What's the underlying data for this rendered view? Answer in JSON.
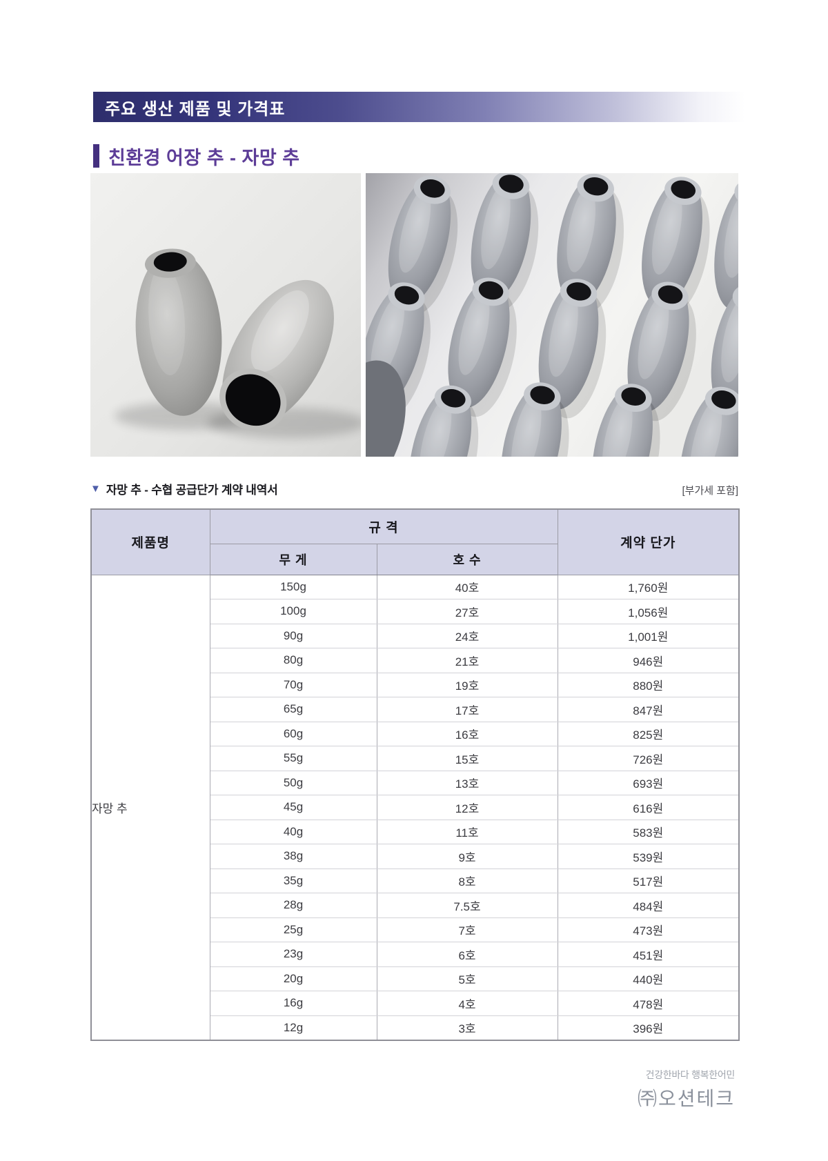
{
  "banner": {
    "title": "주요 생산 제품 및 가격표"
  },
  "section": {
    "title": "친환경 어장 추 - 자망 추"
  },
  "caption": {
    "marker": "▼",
    "title": "자망 추 - 수협 공급단가 계약 내역서",
    "note": "[부가세 포함]"
  },
  "table": {
    "headers": {
      "product": "제품명",
      "spec_group": "규 격",
      "weight": "무 게",
      "size": "호 수",
      "price": "계약 단가"
    },
    "product_name": "자망 추",
    "rows": [
      {
        "weight": "150g",
        "size": "40호",
        "price": "1,760원"
      },
      {
        "weight": "100g",
        "size": "27호",
        "price": "1,056원"
      },
      {
        "weight": "90g",
        "size": "24호",
        "price": "1,001원"
      },
      {
        "weight": "80g",
        "size": "21호",
        "price": "946원"
      },
      {
        "weight": "70g",
        "size": "19호",
        "price": "880원"
      },
      {
        "weight": "65g",
        "size": "17호",
        "price": "847원"
      },
      {
        "weight": "60g",
        "size": "16호",
        "price": "825원"
      },
      {
        "weight": "55g",
        "size": "15호",
        "price": "726원"
      },
      {
        "weight": "50g",
        "size": "13호",
        "price": "693원"
      },
      {
        "weight": "45g",
        "size": "12호",
        "price": "616원"
      },
      {
        "weight": "40g",
        "size": "11호",
        "price": "583원"
      },
      {
        "weight": "38g",
        "size": "9호",
        "price": "539원"
      },
      {
        "weight": "35g",
        "size": "8호",
        "price": "517원"
      },
      {
        "weight": "28g",
        "size": "7.5호",
        "price": "484원"
      },
      {
        "weight": "25g",
        "size": "7호",
        "price": "473원"
      },
      {
        "weight": "23g",
        "size": "6호",
        "price": "451원"
      },
      {
        "weight": "20g",
        "size": "5호",
        "price": "440원"
      },
      {
        "weight": "16g",
        "size": "4호",
        "price": "478원"
      },
      {
        "weight": "12g",
        "size": "3호",
        "price": "396원"
      }
    ]
  },
  "footer": {
    "slogan": "건강한바다 행복한어민",
    "company": "㈜오션테크"
  },
  "colors": {
    "banner_dark": "#2e2e6c",
    "accent_purple": "#5c3c97",
    "section_bar": "#44307f",
    "table_header_bg": "#d3d4e7",
    "caption_marker": "#4f5ea9",
    "footer_gray": "#8b919c"
  }
}
